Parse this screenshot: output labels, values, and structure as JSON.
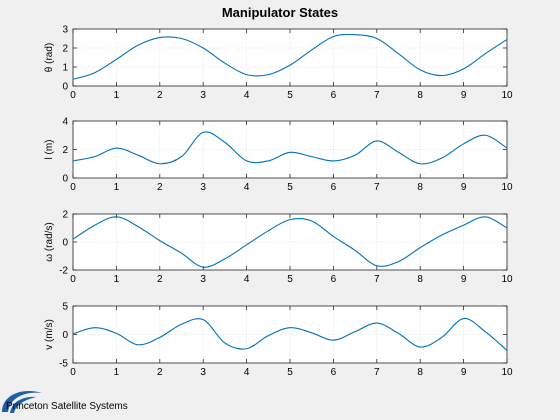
{
  "chart_data": {
    "title": "Manipulator States",
    "line_color": "#0072bd",
    "xlim": [
      0,
      10
    ],
    "x_ticks": [
      0,
      1,
      2,
      3,
      4,
      5,
      6,
      7,
      8,
      9,
      10
    ],
    "subplots": [
      {
        "type": "line",
        "ylabel": "θ (rad)",
        "ylim": [
          0,
          3
        ],
        "y_ticks": [
          0,
          1,
          2,
          3
        ],
        "grid": true,
        "x": [
          0,
          0.5,
          1,
          1.5,
          2,
          2.5,
          3,
          3.5,
          4,
          4.5,
          5,
          5.5,
          6,
          6.5,
          7,
          7.5,
          8,
          8.5,
          9,
          9.5,
          10
        ],
        "y": [
          0.35,
          0.7,
          1.4,
          2.15,
          2.55,
          2.5,
          2.0,
          1.2,
          0.6,
          0.6,
          1.1,
          1.9,
          2.6,
          2.7,
          2.5,
          1.7,
          0.85,
          0.55,
          0.9,
          1.7,
          2.45
        ]
      },
      {
        "type": "line",
        "ylabel": "l (m)",
        "ylim": [
          0,
          4
        ],
        "y_ticks": [
          0,
          2,
          4
        ],
        "grid": true,
        "x": [
          0,
          0.5,
          1,
          1.5,
          2,
          2.5,
          3,
          3.5,
          4,
          4.5,
          5,
          5.5,
          6,
          6.5,
          7,
          7.5,
          8,
          8.5,
          9,
          9.5,
          10
        ],
        "y": [
          1.2,
          1.5,
          2.1,
          1.6,
          1.0,
          1.5,
          3.2,
          2.5,
          1.2,
          1.2,
          1.8,
          1.5,
          1.2,
          1.6,
          2.6,
          1.8,
          1.0,
          1.4,
          2.4,
          3.0,
          2.1
        ]
      },
      {
        "type": "line",
        "ylabel": "ω (rad/s)",
        "ylim": [
          -2,
          2
        ],
        "y_ticks": [
          -2,
          0,
          2
        ],
        "grid": true,
        "x": [
          0,
          0.5,
          1,
          1.5,
          2,
          2.5,
          3,
          3.5,
          4,
          4.5,
          5,
          5.5,
          6,
          6.5,
          7,
          7.5,
          8,
          8.5,
          9,
          9.5,
          10
        ],
        "y": [
          0.2,
          1.2,
          1.8,
          1.1,
          0.1,
          -0.8,
          -1.8,
          -1.2,
          -0.2,
          0.8,
          1.6,
          1.5,
          0.4,
          -0.6,
          -1.7,
          -1.4,
          -0.4,
          0.5,
          1.2,
          1.8,
          1.0
        ]
      },
      {
        "type": "line",
        "ylabel": "v (m/s)",
        "ylim": [
          -5,
          5
        ],
        "y_ticks": [
          -5,
          0,
          5
        ],
        "grid": true,
        "x": [
          0,
          0.5,
          1,
          1.5,
          2,
          2.5,
          3,
          3.5,
          4,
          4.5,
          5,
          5.5,
          6,
          6.5,
          7,
          7.5,
          8,
          8.5,
          9,
          9.5,
          10
        ],
        "y": [
          0.1,
          1.2,
          0.2,
          -1.8,
          -0.5,
          1.8,
          2.6,
          -1.5,
          -2.5,
          -0.2,
          1.2,
          0.3,
          -1.0,
          0.5,
          2.0,
          0.2,
          -2.2,
          -0.5,
          2.8,
          0.5,
          -2.8
        ]
      }
    ]
  },
  "logo": {
    "text": "Princeton Satellite Systems",
    "icon": "swoosh-logo-icon",
    "color": "#1f5fa8"
  }
}
